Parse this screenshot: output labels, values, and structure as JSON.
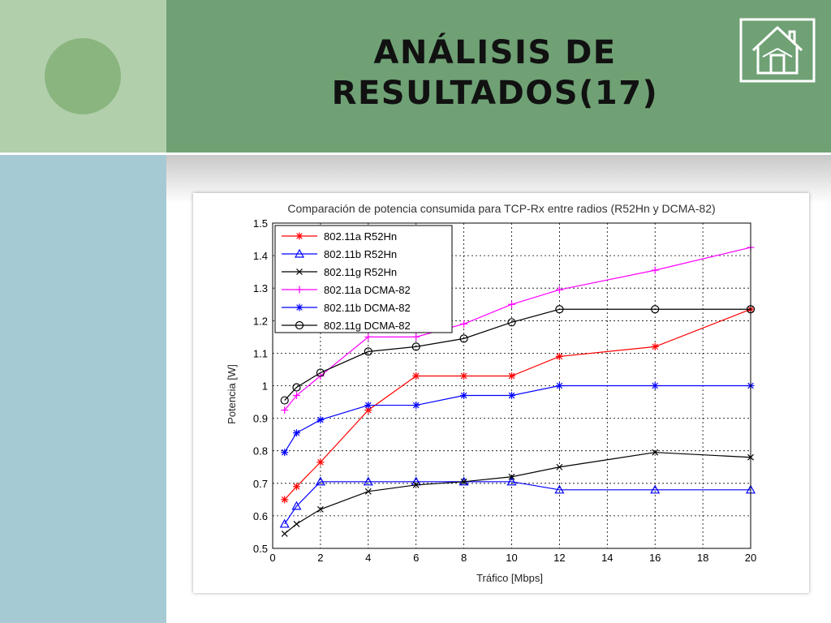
{
  "slide": {
    "title": "ANÁLISIS DE\nRESULTADOS(17)",
    "home_icon": "home-icon",
    "colors": {
      "header": "#6fa175",
      "sidebar_top": "#b2cfac",
      "sidebar_bottom": "#a6cad4",
      "circle": "#8ab57f"
    }
  },
  "chart_data": {
    "type": "line",
    "title": "Comparación de potencia consumida para TCP-Rx entre radios (R52Hn y DCMA-82)",
    "xlabel": "Tráfico [Mbps]",
    "ylabel": "Potencia [W]",
    "xlim": [
      0,
      20
    ],
    "ylim": [
      0.5,
      1.5
    ],
    "xticks": [
      "0",
      "2",
      "4",
      "6",
      "8",
      "10",
      "12",
      "14",
      "16",
      "18",
      "20"
    ],
    "yticks": [
      "0.5",
      "0.6",
      "0.7",
      "0.8",
      "0.9",
      "1",
      "1.1",
      "1.2",
      "1.3",
      "1.4",
      "1.5"
    ],
    "grid": true,
    "legend_position": "top-left",
    "series": [
      {
        "name": "802.11a R52Hn",
        "color": "#ff0000",
        "marker": "asterisk",
        "x": [
          0.5,
          1,
          2,
          4,
          6,
          8,
          10,
          12,
          16,
          20
        ],
        "y": [
          0.65,
          0.69,
          0.765,
          0.925,
          1.03,
          1.03,
          1.03,
          1.09,
          1.12,
          1.235
        ]
      },
      {
        "name": "802.11b R52Hn",
        "color": "#0000ff",
        "marker": "triangle",
        "x": [
          0.5,
          1,
          2,
          4,
          6,
          8,
          10,
          12,
          16,
          20
        ],
        "y": [
          0.575,
          0.63,
          0.705,
          0.705,
          0.705,
          0.705,
          0.705,
          0.68,
          0.68,
          0.68
        ]
      },
      {
        "name": "802.11g R52Hn",
        "color": "#000000",
        "marker": "x",
        "x": [
          0.5,
          1,
          2,
          4,
          6,
          8,
          10,
          12,
          16,
          20
        ],
        "y": [
          0.545,
          0.575,
          0.62,
          0.675,
          0.695,
          0.705,
          0.72,
          0.75,
          0.795,
          0.78
        ]
      },
      {
        "name": "802.11a DCMA-82",
        "color": "#ff00ff",
        "marker": "plus",
        "x": [
          0.5,
          1,
          2,
          4,
          6,
          8,
          10,
          12,
          16,
          20
        ],
        "y": [
          0.925,
          0.97,
          1.03,
          1.15,
          1.15,
          1.19,
          1.25,
          1.295,
          1.355,
          1.425
        ]
      },
      {
        "name": "802.11b DCMA-82",
        "color": "#0000ff",
        "marker": "asterisk",
        "x": [
          0.5,
          1,
          2,
          4,
          6,
          8,
          10,
          12,
          16,
          20
        ],
        "y": [
          0.795,
          0.855,
          0.895,
          0.94,
          0.94,
          0.97,
          0.97,
          1.0,
          1.0,
          1.0
        ]
      },
      {
        "name": "802.11g DCMA-82",
        "color": "#000000",
        "marker": "circle",
        "x": [
          0.5,
          1,
          2,
          4,
          6,
          8,
          10,
          12,
          16,
          20
        ],
        "y": [
          0.955,
          0.995,
          1.04,
          1.105,
          1.12,
          1.145,
          1.195,
          1.235,
          1.235,
          1.235
        ]
      }
    ]
  }
}
